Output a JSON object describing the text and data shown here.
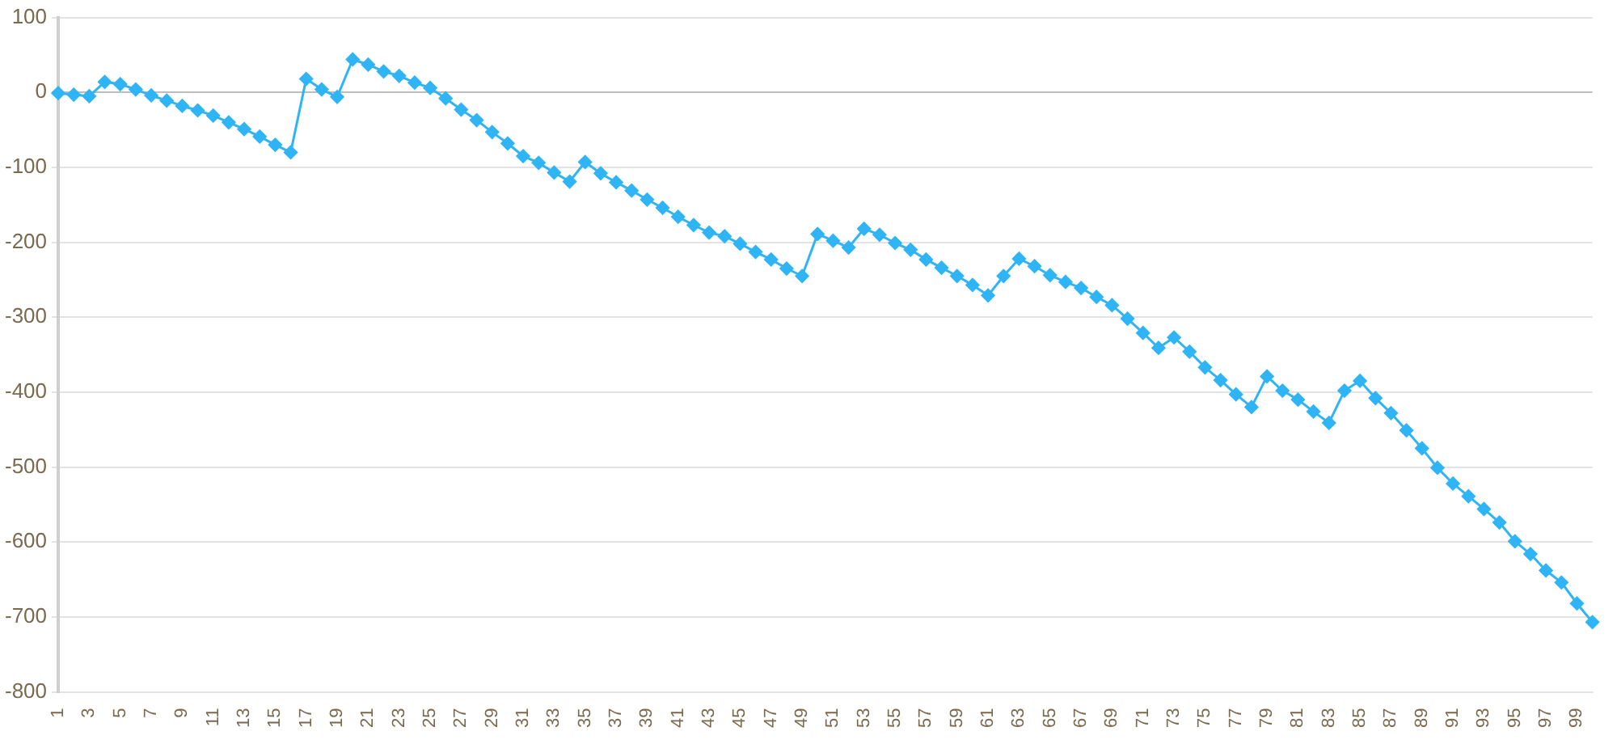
{
  "chart_data": {
    "type": "line",
    "categories": [
      "1",
      null,
      "3",
      null,
      "5",
      null,
      "7",
      null,
      "9",
      null,
      "11",
      null,
      "13",
      null,
      "15",
      null,
      "17",
      null,
      "19",
      null,
      "21",
      null,
      "23",
      null,
      "25",
      null,
      "27",
      null,
      "29",
      null,
      "31",
      null,
      "33",
      null,
      "35",
      null,
      "37",
      null,
      "39",
      null,
      "41",
      null,
      "43",
      null,
      "45",
      null,
      "47",
      null,
      "49",
      null,
      "51",
      null,
      "53",
      null,
      "55",
      null,
      "57",
      null,
      "59",
      null,
      "61",
      null,
      "63",
      null,
      "65",
      null,
      "67",
      null,
      "69",
      null,
      "71",
      null,
      "73",
      null,
      "75",
      null,
      "77",
      null,
      "79",
      null,
      "81",
      null,
      "83",
      null,
      "85",
      null,
      "87",
      null,
      "89",
      null,
      "91",
      null,
      "93",
      null,
      "95",
      null,
      "97",
      null,
      "99",
      null
    ],
    "values": [
      -1,
      -3,
      -5,
      14,
      11,
      4,
      -4,
      -11,
      -18,
      -24,
      -31,
      -40,
      -49,
      -59,
      -70,
      -80,
      18,
      4,
      -6,
      44,
      37,
      28,
      22,
      13,
      6,
      -8,
      -23,
      -37,
      -53,
      -68,
      -85,
      -94,
      -107,
      -119,
      -93,
      -108,
      -120,
      -131,
      -143,
      -154,
      -166,
      -177,
      -187,
      -192,
      -202,
      -213,
      -223,
      -235,
      -245,
      -189,
      -198,
      -207,
      -182,
      -190,
      -201,
      -210,
      -223,
      -234,
      -245,
      -257,
      -271,
      -245,
      -222,
      -232,
      -244,
      -253,
      -261,
      -273,
      -284,
      -302,
      -321,
      -341,
      -327,
      -346,
      -367,
      -384,
      -403,
      -420,
      -379,
      -398,
      -410,
      -426,
      -441,
      -398,
      -385,
      -408,
      -428,
      -451,
      -475,
      -501,
      -522,
      -539,
      -556,
      -574,
      -599,
      -616,
      -638,
      -654,
      -682,
      -707
    ],
    "color": "#2fb4f5",
    "ylim": [
      -800,
      100
    ],
    "yticks": [
      -800,
      -700,
      -600,
      -500,
      -400,
      -300,
      -200,
      -100,
      0,
      100
    ],
    "grid": "y",
    "marker": "diamond",
    "line_style": "solid"
  }
}
